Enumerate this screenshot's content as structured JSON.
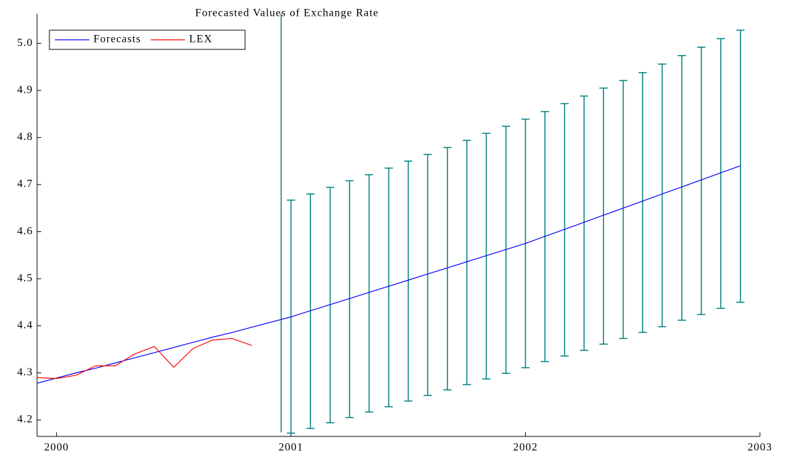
{
  "chart_data": {
    "type": "line",
    "title": "Forecasted Values of Exchange Rate",
    "xlim": [
      1999.917,
      2003
    ],
    "ylim": [
      4.165,
      5.063
    ],
    "xticks": [
      2000,
      2001,
      2002,
      2003
    ],
    "yticks": [
      4.2,
      4.3,
      4.4,
      4.5,
      4.6,
      4.7,
      4.8,
      4.9,
      {
        "value": 5.0,
        "label": "5.0"
      }
    ],
    "legend": "upper left",
    "series": [
      {
        "name": "Forecasts",
        "color": "#0000ff",
        "x": [
          1999.917,
          2000,
          2000.083,
          2000.167,
          2000.25,
          2000.333,
          2000.417,
          2000.5,
          2000.583,
          2000.667,
          2000.75,
          2000.833,
          2000.917,
          2001,
          2001.083,
          2001.167,
          2001.25,
          2001.333,
          2001.417,
          2001.5,
          2001.583,
          2001.667,
          2001.75,
          2001.833,
          2001.917,
          2002,
          2002.083,
          2002.167,
          2002.25,
          2002.333,
          2002.417,
          2002.5,
          2002.583,
          2002.667,
          2002.75,
          2002.833,
          2002.917
        ],
        "values": [
          4.278,
          4.289,
          4.3,
          4.31,
          4.321,
          4.332,
          4.343,
          4.354,
          4.365,
          4.376,
          4.386,
          4.397,
          4.408,
          4.419,
          4.432,
          4.445,
          4.458,
          4.471,
          4.484,
          4.497,
          4.51,
          4.523,
          4.536,
          4.549,
          4.562,
          4.575,
          4.59,
          4.605,
          4.62,
          4.635,
          4.65,
          4.665,
          4.68,
          4.695,
          4.71,
          4.725,
          4.74
        ]
      },
      {
        "name": "LEX",
        "color": "#ff0000",
        "x": [
          1999.917,
          2000,
          2000.083,
          2000.167,
          2000.25,
          2000.333,
          2000.417,
          2000.5,
          2000.583,
          2000.667,
          2000.75,
          2000.833
        ],
        "values": [
          4.29,
          4.288,
          4.295,
          4.315,
          4.315,
          4.34,
          4.356,
          4.312,
          4.352,
          4.37,
          4.373,
          4.358
        ]
      }
    ],
    "error_bands": {
      "color": "#008080",
      "x": [
        2001,
        2001.083,
        2001.167,
        2001.25,
        2001.333,
        2001.417,
        2001.5,
        2001.583,
        2001.667,
        2001.75,
        2001.833,
        2001.917,
        2002,
        2002.083,
        2002.167,
        2002.25,
        2002.333,
        2002.417,
        2002.5,
        2002.583,
        2002.667,
        2002.75,
        2002.833,
        2002.917
      ],
      "low": [
        4.172,
        4.182,
        4.194,
        4.205,
        4.217,
        4.228,
        4.24,
        4.252,
        4.264,
        4.275,
        4.287,
        4.299,
        4.311,
        4.324,
        4.336,
        4.348,
        4.361,
        4.373,
        4.386,
        4.398,
        4.412,
        4.424,
        4.437,
        4.45
      ],
      "high": [
        4.667,
        4.68,
        4.694,
        4.708,
        4.721,
        4.735,
        4.75,
        4.764,
        4.779,
        4.794,
        4.809,
        4.824,
        4.839,
        4.855,
        4.872,
        4.888,
        4.905,
        4.921,
        4.938,
        4.956,
        4.974,
        4.992,
        5.01,
        5.028
      ]
    },
    "forecast_origin": 2000.958
  }
}
